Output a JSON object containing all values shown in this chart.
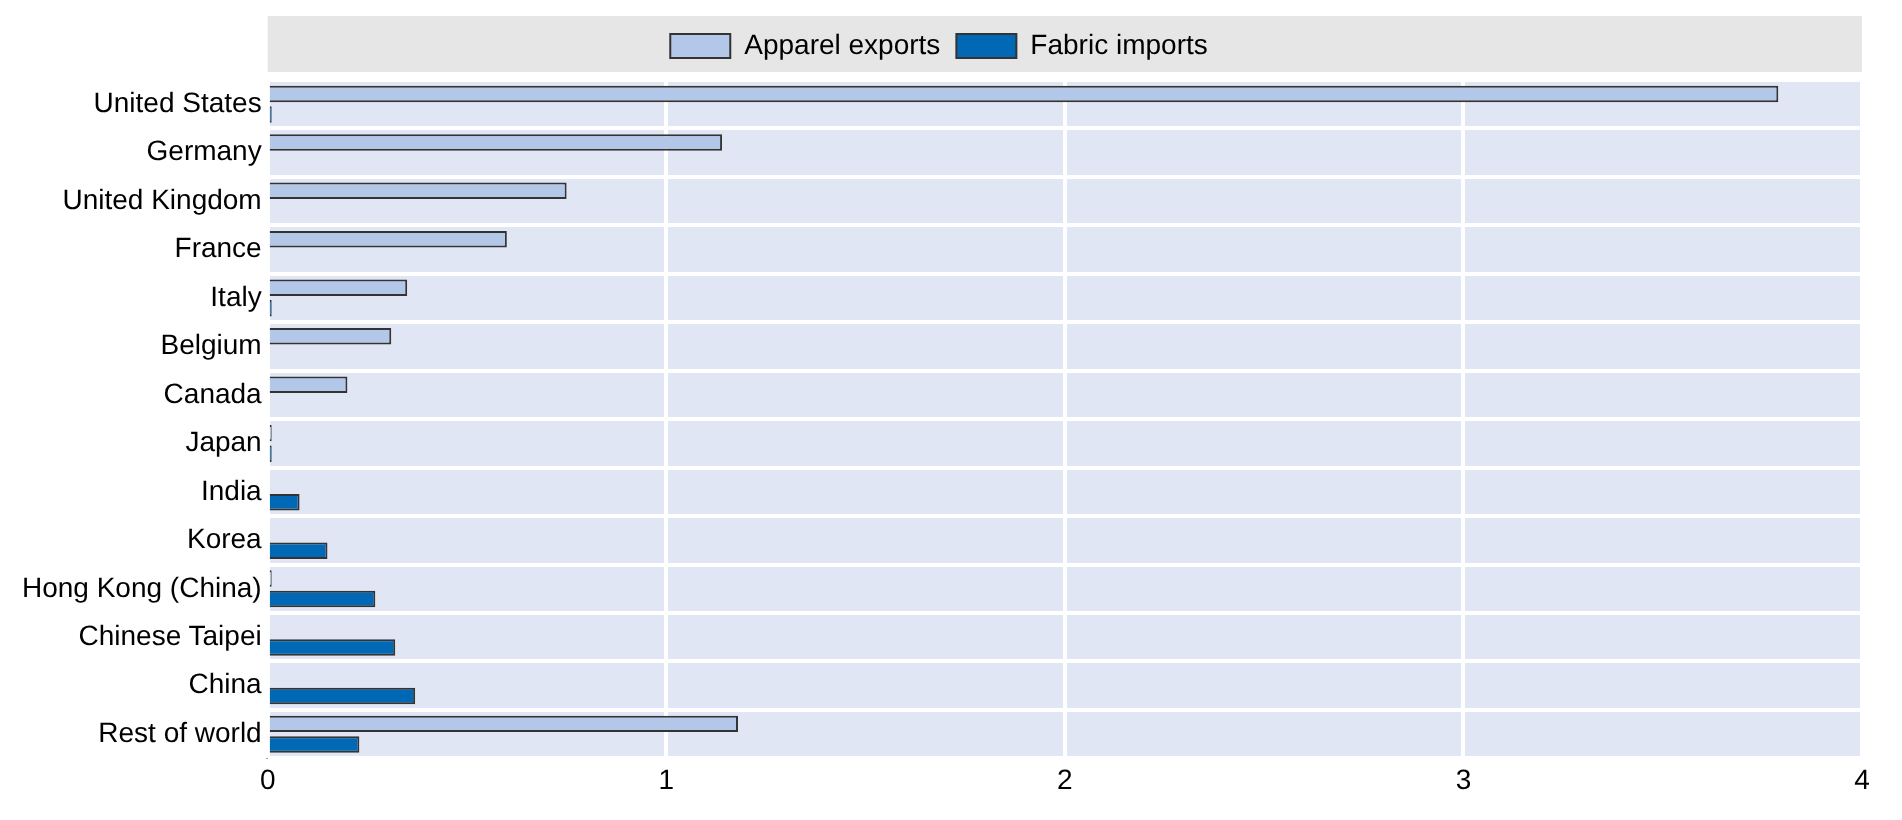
{
  "chart_data": {
    "type": "bar",
    "orientation": "horizontal",
    "categories": [
      "United States",
      "Germany",
      "United Kingdom",
      "France",
      "Italy",
      "Belgium",
      "Canada",
      "Japan",
      "India",
      "Korea",
      "Hong Kong (China)",
      "Chinese Taipei",
      "China",
      "Rest of world"
    ],
    "series": [
      {
        "name": "Apparel exports",
        "color": "#b3c7e8",
        "values": [
          3.79,
          1.14,
          0.75,
          0.6,
          0.35,
          0.31,
          0.2,
          0.01,
          0,
          0,
          0.01,
          0,
          0,
          1.18
        ]
      },
      {
        "name": "Fabric imports",
        "color": "#0068b4",
        "values": [
          0.01,
          0,
          0,
          0,
          0.01,
          0,
          0,
          0.01,
          0.08,
          0.15,
          0.27,
          0.32,
          0.37,
          0.23
        ]
      }
    ],
    "xlim": [
      0,
      4
    ],
    "xticks": [
      0,
      1,
      2,
      3,
      4
    ],
    "grid": true,
    "legend": "top"
  }
}
